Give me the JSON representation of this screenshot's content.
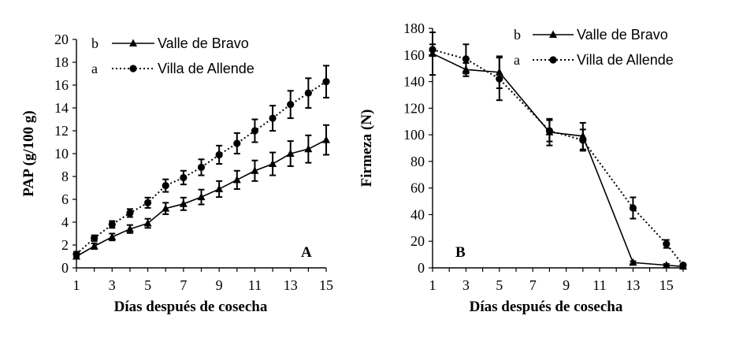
{
  "chart_data": [
    {
      "type": "line",
      "panel_label": "A",
      "xlabel": "Días después de cosecha",
      "ylabel": "PAP (g/100 g)",
      "xlim": [
        1,
        15
      ],
      "ylim": [
        0,
        20
      ],
      "x_ticks": [
        1,
        3,
        5,
        7,
        9,
        11,
        13,
        15
      ],
      "y_ticks": [
        0,
        2,
        4,
        6,
        8,
        10,
        12,
        14,
        16,
        18,
        20
      ],
      "grid": false,
      "legend_position": "top-left",
      "series": [
        {
          "name": "Valle de Bravo",
          "significance_letter": "b",
          "line_style": "solid",
          "marker": "triangle",
          "x": [
            1,
            2,
            3,
            4,
            5,
            6,
            7,
            8,
            9,
            10,
            11,
            12,
            13,
            14,
            15
          ],
          "y": [
            1.0,
            1.9,
            2.7,
            3.4,
            3.9,
            5.2,
            5.6,
            6.2,
            6.9,
            7.7,
            8.5,
            9.1,
            10.0,
            10.4,
            11.2
          ],
          "err": [
            0.2,
            0.25,
            0.3,
            0.35,
            0.4,
            0.5,
            0.55,
            0.65,
            0.7,
            0.8,
            0.9,
            1.0,
            1.1,
            1.2,
            1.3
          ]
        },
        {
          "name": "Villa de Allende",
          "significance_letter": "a",
          "line_style": "dotted",
          "marker": "circle",
          "x": [
            1,
            2,
            3,
            4,
            5,
            6,
            7,
            8,
            9,
            10,
            11,
            12,
            13,
            14,
            15
          ],
          "y": [
            1.2,
            2.6,
            3.8,
            4.8,
            5.7,
            7.2,
            7.9,
            8.8,
            9.9,
            10.9,
            12.0,
            13.1,
            14.3,
            15.3,
            16.3
          ],
          "err": [
            0.2,
            0.25,
            0.3,
            0.35,
            0.45,
            0.55,
            0.6,
            0.7,
            0.8,
            0.9,
            1.0,
            1.1,
            1.2,
            1.3,
            1.4
          ]
        }
      ]
    },
    {
      "type": "line",
      "panel_label": "B",
      "xlabel": "Días después de cosecha",
      "ylabel": "Firmeza (N)",
      "xlim": [
        1,
        16
      ],
      "ylim": [
        0,
        180
      ],
      "x_ticks": [
        1,
        3,
        5,
        7,
        9,
        11,
        13,
        15
      ],
      "y_ticks": [
        0,
        20,
        40,
        60,
        80,
        100,
        120,
        140,
        160,
        180
      ],
      "grid": false,
      "legend_position": "top-right",
      "series": [
        {
          "name": "Valle de Bravo",
          "significance_letter": "b",
          "line_style": "solid",
          "marker": "triangle",
          "x": [
            1,
            3,
            5,
            8,
            10,
            13,
            15,
            16
          ],
          "y": [
            161,
            149,
            147,
            102,
            99,
            4,
            2,
            1
          ],
          "err": [
            16,
            5,
            12,
            10,
            10,
            1,
            1,
            0.5
          ]
        },
        {
          "name": "Villa de Allende",
          "significance_letter": "a",
          "line_style": "dotted",
          "marker": "circle",
          "x": [
            1,
            3,
            5,
            8,
            10,
            13,
            15,
            16
          ],
          "y": [
            164,
            157,
            142,
            103,
            96,
            45,
            18,
            2
          ],
          "err": [
            4,
            11,
            16,
            8,
            8,
            8,
            3,
            1
          ]
        }
      ]
    }
  ]
}
